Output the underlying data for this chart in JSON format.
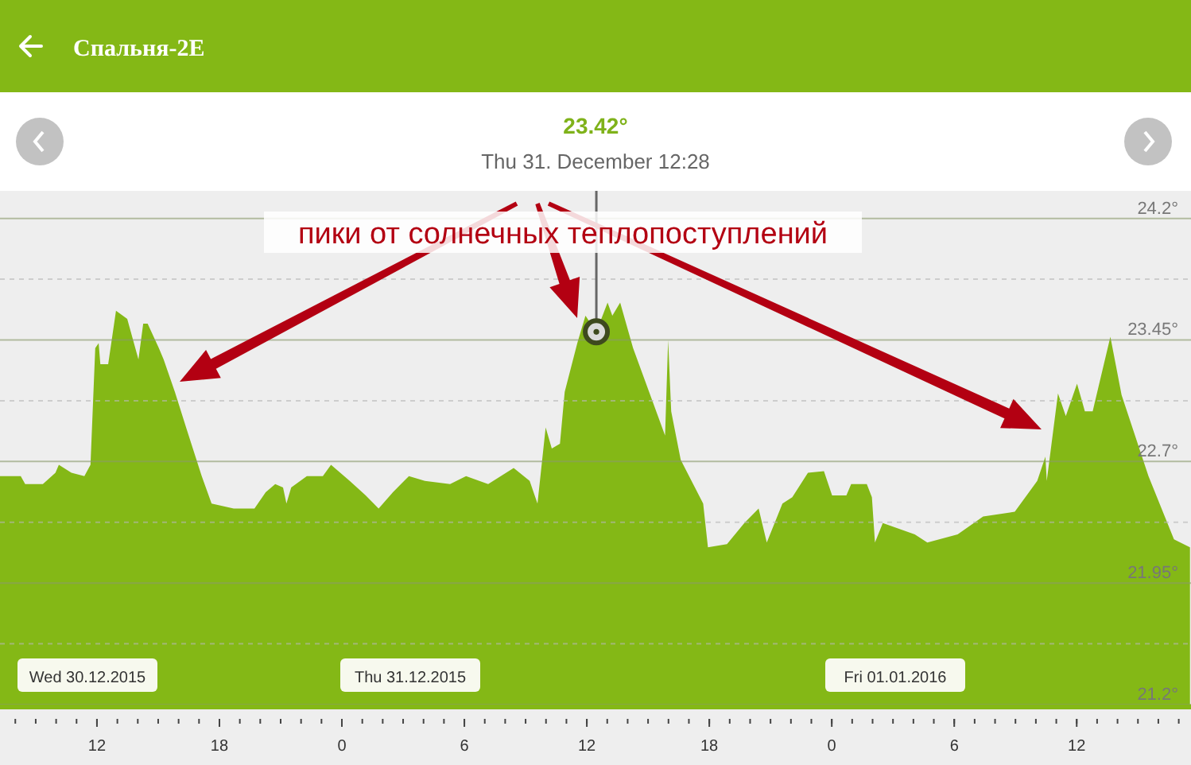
{
  "chart_data": {
    "type": "area",
    "title": "Спальня-2E",
    "subtitle": "Thu 31. December 12:28",
    "x": [
      "2015-12-30T07:15",
      "2015-12-30T08:16",
      "2015-12-30T08:29",
      "2015-12-30T09:21",
      "2015-12-30T09:58",
      "2015-12-30T10:08",
      "2015-12-30T10:45",
      "2015-12-30T11:23",
      "2015-12-30T11:41",
      "2015-12-30T11:55",
      "2015-12-30T12:05",
      "2015-12-30T12:10",
      "2015-12-30T12:33",
      "2015-12-30T12:56",
      "2015-12-30T13:29",
      "2015-12-30T14:02",
      "2015-12-30T14:16",
      "2015-12-30T14:29",
      "2015-12-30T15:02",
      "2015-12-30T15:16",
      "2015-12-30T15:49",
      "2015-12-30T16:22",
      "2015-12-30T17:08",
      "2015-12-30T17:37",
      "2015-12-30T18:42",
      "2015-12-30T19:43",
      "2015-12-30T20:16",
      "2015-12-30T20:44",
      "2015-12-30T21:07",
      "2015-12-30T21:17",
      "2015-12-30T21:31",
      "2015-12-30T22:17",
      "2015-12-30T23:04",
      "2015-12-30T23:28",
      "2015-12-31T00:23",
      "2015-12-31T01:10",
      "2015-12-31T01:48",
      "2015-12-31T02:30",
      "2015-12-31T03:17",
      "2015-12-31T04:04",
      "2015-12-31T05:18",
      "2015-12-31T06:05",
      "2015-12-31T07:10",
      "2015-12-31T08:25",
      "2015-12-31T09:12",
      "2015-12-31T09:35",
      "2015-12-31T09:59",
      "2015-12-31T10:17",
      "2015-12-31T10:41",
      "2015-12-31T10:55",
      "2015-12-31T11:32",
      "2015-12-31T11:56",
      "2015-12-31T12:28",
      "2015-12-31T13:01",
      "2015-12-31T13:15",
      "2015-12-31T13:38",
      "2015-12-31T14:16",
      "2015-12-31T15:03",
      "2015-12-31T15:50",
      "2015-12-31T15:59",
      "2015-12-31T16:08",
      "2015-12-31T16:36",
      "2015-12-31T17:42",
      "2015-12-31T17:56",
      "2015-12-31T18:52",
      "2015-12-31T19:43",
      "2015-12-31T20:25",
      "2015-12-31T20:49",
      "2015-12-31T21:35",
      "2015-12-31T22:04",
      "2015-12-31T22:50",
      "2015-12-31T23:37",
      "2016-01-01T00:01",
      "2016-01-01T00:43",
      "2016-01-01T00:57",
      "2016-01-01T01:43",
      "2016-01-01T01:58",
      "2016-01-01T02:07",
      "2016-01-01T02:30",
      "2016-01-01T04:04",
      "2016-01-01T04:41",
      "2016-01-01T06:10",
      "2016-01-01T07:25",
      "2016-01-01T08:58",
      "2016-01-01T10:04",
      "2016-01-01T10:28",
      "2016-01-01T10:32",
      "2016-01-01T11:05",
      "2016-01-01T11:28",
      "2016-01-01T12:01",
      "2016-01-01T12:24",
      "2016-01-01T12:47",
      "2016-01-01T13:39",
      "2016-01-01T14:12",
      "2016-01-01T15:31",
      "2016-01-01T16:46",
      "2016-01-01T17:33"
    ],
    "series": [
      {
        "color": "#84b816",
        "values": [
          22.61,
          22.61,
          22.56,
          22.56,
          22.63,
          22.68,
          22.63,
          22.61,
          22.68,
          23.4,
          23.43,
          23.3,
          23.3,
          23.63,
          23.58,
          23.33,
          23.55,
          23.55,
          23.4,
          23.33,
          23.13,
          22.91,
          22.61,
          22.44,
          22.41,
          22.41,
          22.51,
          22.56,
          22.54,
          22.44,
          22.54,
          22.61,
          22.61,
          22.68,
          22.58,
          22.49,
          22.41,
          22.51,
          22.61,
          22.58,
          22.56,
          22.61,
          22.56,
          22.66,
          22.58,
          22.44,
          22.91,
          22.78,
          22.81,
          23.13,
          23.43,
          23.6,
          23.5,
          23.68,
          23.6,
          23.68,
          23.4,
          23.13,
          22.86,
          23.45,
          23.01,
          22.71,
          22.44,
          22.17,
          22.19,
          22.32,
          22.41,
          22.2,
          22.44,
          22.48,
          22.63,
          22.64,
          22.49,
          22.49,
          22.56,
          22.56,
          22.48,
          22.2,
          22.32,
          22.25,
          22.2,
          22.25,
          22.36,
          22.39,
          22.58,
          22.73,
          22.58,
          23.12,
          22.98,
          23.18,
          23.01,
          23.01,
          23.47,
          23.11,
          22.61,
          22.22,
          22.17
        ]
      }
    ],
    "xlim": [
      "2015-12-30T07:15",
      "2016-01-01T17:36"
    ],
    "ylim": [
      21.2,
      24.37
    ],
    "xticks": [
      {
        "value": "2015-12-30T12:00",
        "label": "12"
      },
      {
        "value": "2015-12-30T18:00",
        "label": "18"
      },
      {
        "value": "2015-12-31T00:00",
        "label": "0"
      },
      {
        "value": "2015-12-31T06:00",
        "label": "6"
      },
      {
        "value": "2015-12-31T12:00",
        "label": "12"
      },
      {
        "value": "2015-12-31T18:00",
        "label": "18"
      },
      {
        "value": "2016-01-01T00:00",
        "label": "0"
      },
      {
        "value": "2016-01-01T06:00",
        "label": "6"
      },
      {
        "value": "2016-01-01T12:00",
        "label": "12"
      }
    ],
    "yticks": [
      {
        "value": 21.2,
        "label": "21.2°"
      },
      {
        "value": 21.575,
        "label": null
      },
      {
        "value": 21.95,
        "label": "21.95°"
      },
      {
        "value": 22.325,
        "label": null
      },
      {
        "value": 22.7,
        "label": "22.7°"
      },
      {
        "value": 23.075,
        "label": null
      },
      {
        "value": 23.45,
        "label": "23.45°"
      },
      {
        "value": 23.825,
        "label": null
      },
      {
        "value": 24.2,
        "label": "24.2°"
      }
    ],
    "grid": true,
    "ref_lines": [
      {
        "axis": "x",
        "value": "2015-12-31T12:28",
        "color": "#666666"
      }
    ],
    "annotations": [
      "23.42°",
      "пики от солнечных теплопоступлений",
      "Wed 30.12.2015",
      "Thu 31.12.2015",
      "Fri 01.01.2016"
    ]
  }
}
